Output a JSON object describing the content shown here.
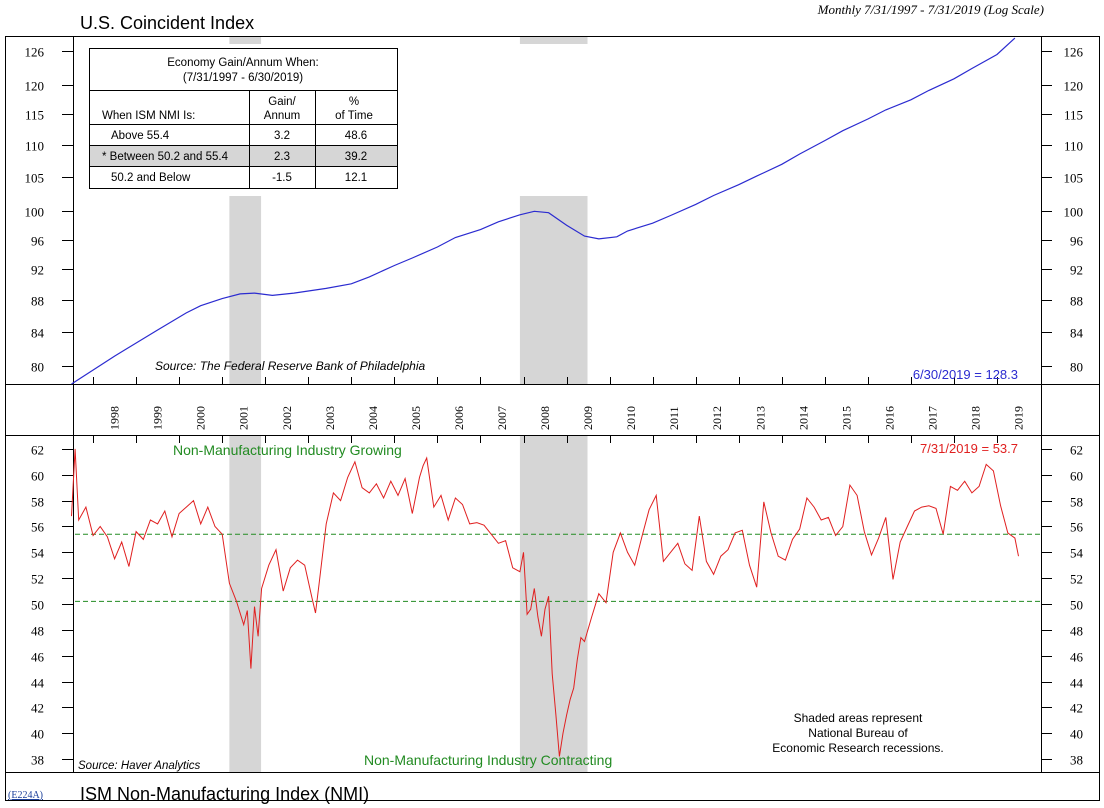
{
  "header": {
    "title": "U.S. Coincident Index",
    "subtitle": "Monthly 7/31/1997 - 7/31/2019 (Log Scale)"
  },
  "footer": {
    "code": "(E224A)",
    "title": "ISM Non-Manufacturing Index (NMI)"
  },
  "table": {
    "title_line1": "Economy Gain/Annum When:",
    "title_line2": "(7/31/1997 - 6/30/2019)",
    "col_label": "When ISM NMI Is:",
    "col_gain_line1": "Gain/",
    "col_gain_line2": "Annum",
    "col_pct_line1": "%",
    "col_pct_line2": "of Time",
    "rows": [
      {
        "label": "Above 55.4",
        "gain": "3.2",
        "pct": "48.6"
      },
      {
        "label": "* Between 50.2 and 55.4",
        "gain": "2.3",
        "pct": "39.2"
      },
      {
        "label": "50.2 and Below",
        "gain": "-1.5",
        "pct": "12.1"
      }
    ]
  },
  "colors": {
    "coincident": "#2b2bd0",
    "nmi": "#e02020",
    "threshold": "#228b22",
    "recession": "#d6d6d6"
  },
  "chart_data": [
    {
      "type": "line",
      "name": "U.S. Coincident Index",
      "scale": "log",
      "ylim": [
        78,
        128.5
      ],
      "yticks": [
        80,
        84,
        88,
        92,
        96,
        100,
        105,
        110,
        115,
        120,
        126
      ],
      "ytick_labels": [
        "80",
        "84",
        "88",
        "92",
        "96",
        "100",
        "105",
        "110",
        "115",
        "120",
        "126"
      ],
      "xlim": [
        "1997-07-31",
        "2019-07-31"
      ],
      "x_tick_labels": [
        "1998",
        "1999",
        "2000",
        "2001",
        "2002",
        "2003",
        "2004",
        "2005",
        "2006",
        "2007",
        "2008",
        "2009",
        "2010",
        "2011",
        "2012",
        "2013",
        "2014",
        "2015",
        "2016",
        "2017",
        "2018",
        "2019"
      ],
      "recessions": [
        [
          "2001-03",
          "2001-11"
        ],
        [
          "2007-12",
          "2009-06"
        ]
      ],
      "source": "Source: The Federal Reserve Bank of Philadelphia",
      "last_value_label": "6/30/2019 = 128.3",
      "x": [
        "1997-07",
        "1998-07",
        "1999-07",
        "2000-03",
        "2000-07",
        "2001-01",
        "2001-06",
        "2001-10",
        "2002-03",
        "2002-09",
        "2003-06",
        "2004-01",
        "2004-06",
        "2005-01",
        "2005-06",
        "2006-01",
        "2006-06",
        "2007-01",
        "2007-06",
        "2007-12",
        "2008-04",
        "2008-08",
        "2009-01",
        "2009-06",
        "2009-10",
        "2010-03",
        "2010-06",
        "2011-01",
        "2011-06",
        "2012-01",
        "2012-06",
        "2013-01",
        "2013-06",
        "2014-01",
        "2014-06",
        "2015-01",
        "2015-06",
        "2016-01",
        "2016-06",
        "2017-01",
        "2017-06",
        "2018-01",
        "2018-06",
        "2019-01",
        "2019-06"
      ],
      "values": [
        78.0,
        81.2,
        84.3,
        86.4,
        87.3,
        88.2,
        88.8,
        88.9,
        88.6,
        88.9,
        89.5,
        90.1,
        91.0,
        92.5,
        93.5,
        95.0,
        96.3,
        97.4,
        98.5,
        99.5,
        100.0,
        99.8,
        98.0,
        96.5,
        96.1,
        96.4,
        97.2,
        98.3,
        99.4,
        101.0,
        102.3,
        103.9,
        105.2,
        107.0,
        108.6,
        110.7,
        112.3,
        114.2,
        115.7,
        117.4,
        119.0,
        121.0,
        122.8,
        125.3,
        128.3
      ]
    },
    {
      "type": "line",
      "name": "ISM Non-Manufacturing Index (NMI)",
      "ylim": [
        37,
        63
      ],
      "yticks": [
        38,
        40,
        42,
        44,
        46,
        48,
        50,
        52,
        54,
        56,
        58,
        60,
        62
      ],
      "ytick_labels": [
        "38",
        "40",
        "42",
        "44",
        "46",
        "48",
        "50",
        "52",
        "54",
        "56",
        "58",
        "60",
        "62"
      ],
      "xlim": [
        "1997-07-31",
        "2019-07-31"
      ],
      "thresholds": [
        55.4,
        50.2
      ],
      "label_top": "Non-Manufacturing Industry Growing",
      "label_bottom": "Non-Manufacturing Industry Contracting",
      "last_value_label": "7/31/2019 = 53.7",
      "source": "Source: Haver Analytics",
      "note_line1": "Shaded areas represent",
      "note_line2": "National Bureau of",
      "note_line3": "Economic Research recessions.",
      "x": [
        "1997-07",
        "1997-08",
        "1997-09",
        "1997-11",
        "1998-01",
        "1998-03",
        "1998-05",
        "1998-07",
        "1998-09",
        "1998-11",
        "1999-01",
        "1999-03",
        "1999-05",
        "1999-07",
        "1999-09",
        "1999-11",
        "2000-01",
        "2000-03",
        "2000-05",
        "2000-07",
        "2000-09",
        "2000-11",
        "2001-01",
        "2001-03",
        "2001-05",
        "2001-07",
        "2001-08",
        "2001-09",
        "2001-10",
        "2001-11",
        "2001-12",
        "2002-02",
        "2002-04",
        "2002-06",
        "2002-08",
        "2002-10",
        "2002-12",
        "2003-02",
        "2003-03",
        "2003-04",
        "2003-06",
        "2003-08",
        "2003-10",
        "2003-12",
        "2004-02",
        "2004-04",
        "2004-06",
        "2004-08",
        "2004-10",
        "2004-12",
        "2005-02",
        "2005-04",
        "2005-06",
        "2005-08",
        "2005-09",
        "2005-10",
        "2005-12",
        "2006-02",
        "2006-04",
        "2006-06",
        "2006-08",
        "2006-10",
        "2006-12",
        "2007-02",
        "2007-04",
        "2007-06",
        "2007-08",
        "2007-10",
        "2007-12",
        "2008-01",
        "2008-02",
        "2008-03",
        "2008-04",
        "2008-05",
        "2008-06",
        "2008-07",
        "2008-08",
        "2008-09",
        "2008-10",
        "2008-11",
        "2008-12",
        "2009-01",
        "2009-02",
        "2009-03",
        "2009-04",
        "2009-05",
        "2009-06",
        "2009-08",
        "2009-10",
        "2009-12",
        "2010-02",
        "2010-04",
        "2010-06",
        "2010-08",
        "2010-10",
        "2010-12",
        "2011-02",
        "2011-04",
        "2011-06",
        "2011-08",
        "2011-10",
        "2011-12",
        "2012-02",
        "2012-04",
        "2012-06",
        "2012-08",
        "2012-10",
        "2012-12",
        "2013-02",
        "2013-04",
        "2013-06",
        "2013-08",
        "2013-10",
        "2013-12",
        "2014-02",
        "2014-04",
        "2014-06",
        "2014-08",
        "2014-10",
        "2014-12",
        "2015-02",
        "2015-04",
        "2015-06",
        "2015-08",
        "2015-10",
        "2015-12",
        "2016-02",
        "2016-04",
        "2016-06",
        "2016-08",
        "2016-10",
        "2016-12",
        "2017-02",
        "2017-04",
        "2017-06",
        "2017-08",
        "2017-10",
        "2017-12",
        "2018-02",
        "2018-04",
        "2018-06",
        "2018-08",
        "2018-10",
        "2018-12",
        "2019-02",
        "2019-04",
        "2019-06",
        "2019-07"
      ],
      "values": [
        56.8,
        62.0,
        56.5,
        57.5,
        55.3,
        56.0,
        55.2,
        53.5,
        54.8,
        52.9,
        55.6,
        55.0,
        56.5,
        56.2,
        57.2,
        55.2,
        57.0,
        57.5,
        58.0,
        56.2,
        57.5,
        56.0,
        55.4,
        51.6,
        50.2,
        48.4,
        49.5,
        45.0,
        49.8,
        47.5,
        51.2,
        53.0,
        54.2,
        51.0,
        52.8,
        53.4,
        53.0,
        50.5,
        49.3,
        51.5,
        56.2,
        58.6,
        58.0,
        59.8,
        61.0,
        59.0,
        58.6,
        59.3,
        58.2,
        59.5,
        58.4,
        59.7,
        57.0,
        59.8,
        60.7,
        61.3,
        57.5,
        58.4,
        56.5,
        58.2,
        57.7,
        56.2,
        56.3,
        56.1,
        55.4,
        54.7,
        54.9,
        52.8,
        52.5,
        54.0,
        49.2,
        49.6,
        51.2,
        49.0,
        47.5,
        49.6,
        50.6,
        44.6,
        41.5,
        38.2,
        40.0,
        41.4,
        42.6,
        43.5,
        45.7,
        47.4,
        47.1,
        49.0,
        50.8,
        50.1,
        54.0,
        55.5,
        54.0,
        53.0,
        55.2,
        57.3,
        58.4,
        53.3,
        54.0,
        54.7,
        53.1,
        52.6,
        56.8,
        53.3,
        52.3,
        53.7,
        54.2,
        55.5,
        55.7,
        53.0,
        51.3,
        57.9,
        55.5,
        53.7,
        53.4,
        55.0,
        55.8,
        58.2,
        57.5,
        56.5,
        56.7,
        55.3,
        56.0,
        59.2,
        58.4,
        55.6,
        53.8,
        55.1,
        56.7,
        51.9,
        54.8,
        56.0,
        57.2,
        57.5,
        57.6,
        57.4,
        55.4,
        59.1,
        58.8,
        59.5,
        58.6,
        59.1,
        60.8,
        60.3,
        57.6,
        55.5,
        55.1,
        53.7
      ]
    }
  ]
}
